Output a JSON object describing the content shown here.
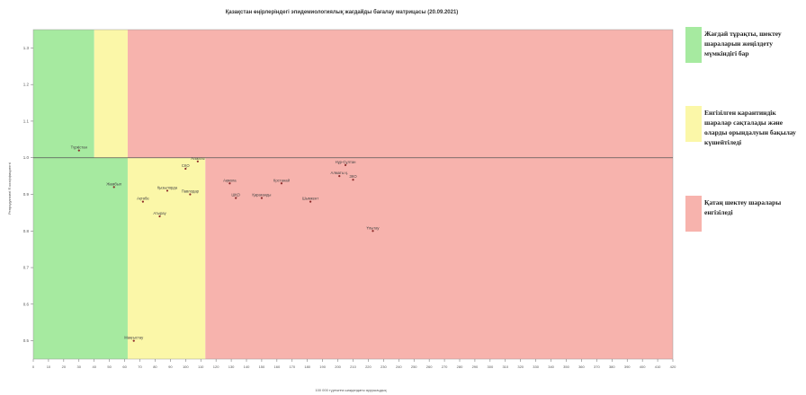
{
  "chart_data": {
    "type": "scatter",
    "title": "Қазақстан өңірлеріндегі эпидемиологиялық жағдайды бағалау матрицасы (20.09.2021)",
    "xlabel": "100 000 тұрғынға шаққандағы аурушаңдық",
    "ylabel": "Репродуктивті R коэффициенті",
    "xlim": [
      0,
      420
    ],
    "ylim": [
      0.45,
      1.35
    ],
    "x_ticks": [
      0,
      10,
      20,
      30,
      40,
      50,
      60,
      70,
      80,
      90,
      100,
      110,
      120,
      130,
      140,
      150,
      160,
      170,
      180,
      190,
      200,
      210,
      220,
      230,
      240,
      250,
      260,
      270,
      280,
      290,
      300,
      310,
      320,
      330,
      340,
      350,
      360,
      370,
      380,
      390,
      400,
      410,
      420
    ],
    "y_ticks": [
      "0.5",
      "0.6",
      "0.7",
      "0.8",
      "0.9",
      "1.0",
      "1.1",
      "1.2",
      "1.3"
    ],
    "zones": [
      {
        "x_from": 0,
        "x_to": 40,
        "y_from": 1.0,
        "y_to": 1.35,
        "color": "#a6eaa0"
      },
      {
        "x_from": 40,
        "x_to": 62,
        "y_from": 1.0,
        "y_to": 1.35,
        "color": "#fbf7a8"
      },
      {
        "x_from": 62,
        "x_to": 420,
        "y_from": 1.0,
        "y_to": 1.35,
        "color": "#f7b3ad"
      },
      {
        "x_from": 0,
        "x_to": 62,
        "y_from": 0.45,
        "y_to": 1.0,
        "color": "#a6eaa0"
      },
      {
        "x_from": 62,
        "x_to": 113,
        "y_from": 0.45,
        "y_to": 1.0,
        "color": "#fbf7a8"
      },
      {
        "x_from": 113,
        "x_to": 420,
        "y_from": 0.45,
        "y_to": 1.0,
        "color": "#f7b3ad"
      }
    ],
    "threshold_y": 1.0,
    "points": [
      {
        "label": "Түркістан",
        "x": 30,
        "y": 1.02
      },
      {
        "label": "Жамбыл",
        "x": 53,
        "y": 0.92
      },
      {
        "label": "Маңғыстау",
        "x": 66,
        "y": 0.5
      },
      {
        "label": "Ақтөбе",
        "x": 72,
        "y": 0.88
      },
      {
        "label": "Атырау",
        "x": 83,
        "y": 0.84
      },
      {
        "label": "Қызылорда",
        "x": 88,
        "y": 0.91
      },
      {
        "label": "Павлодар",
        "x": 103,
        "y": 0.9
      },
      {
        "label": "СҚО",
        "x": 100,
        "y": 0.97
      },
      {
        "label": "Алматы",
        "x": 108,
        "y": 0.99
      },
      {
        "label": "Ақмола",
        "x": 129,
        "y": 0.93
      },
      {
        "label": "ШҚО",
        "x": 133,
        "y": 0.89
      },
      {
        "label": "Қарағанды",
        "x": 150,
        "y": 0.89
      },
      {
        "label": "Қостанай",
        "x": 163,
        "y": 0.93
      },
      {
        "label": "Шымкент",
        "x": 182,
        "y": 0.88
      },
      {
        "label": "Нұр-Сұлтан",
        "x": 205,
        "y": 0.98
      },
      {
        "label": "Алматы қ.",
        "x": 201,
        "y": 0.95
      },
      {
        "label": "ЗКО",
        "x": 210,
        "y": 0.94
      },
      {
        "label": "Ұлытау",
        "x": 223,
        "y": 0.8
      }
    ]
  },
  "legend": [
    {
      "text": "Жағдай тұрақты, шектеу шараларын жеңілдету мүмкіндігі бар",
      "color": "#a6eaa0"
    },
    {
      "text": "Енгізілген карантиндік шаралар сақталады және оларды орындалуын бақылау күшейтіледі",
      "color": "#fbf7a8"
    },
    {
      "text": "Қатаң шектеу шаралары енгізіледі",
      "color": "#f7b3ad"
    }
  ]
}
